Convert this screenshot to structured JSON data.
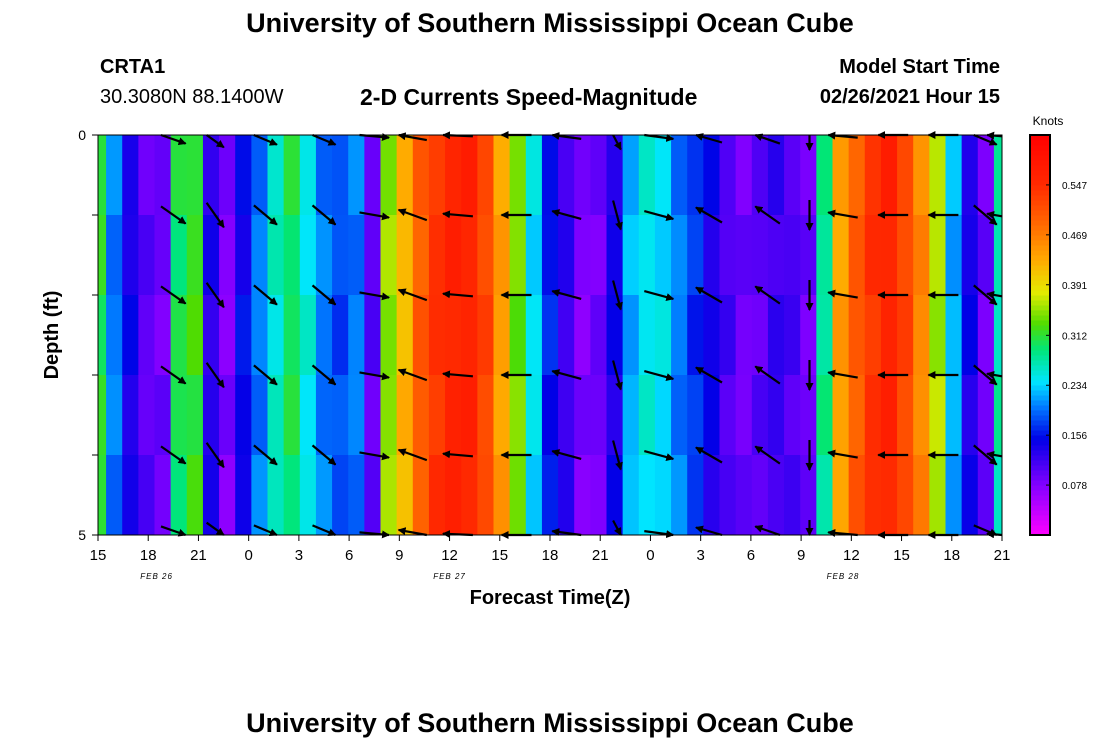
{
  "header": {
    "title": "University of Southern Mississippi Ocean Cube",
    "station_id": "CRTA1",
    "station_coords": "30.3080N 88.1400W",
    "plot_title": "2-D Currents Speed-Magnitude",
    "model_start_label": "Model Start Time",
    "model_start_value": "02/26/2021 Hour 15"
  },
  "footer": {
    "title": "University of Southern Mississippi Ocean Cube"
  },
  "chart_data": {
    "type": "heatmap",
    "title": "2-D Currents Speed-Magnitude",
    "xlabel": "Forecast Time(Z)",
    "ylabel": "Depth (ft)",
    "x_range_hours": [
      0,
      54
    ],
    "x_tick_labels": [
      "15",
      "18",
      "21",
      "0",
      "3",
      "6",
      "9",
      "12",
      "15",
      "18",
      "21",
      "0",
      "3",
      "6",
      "9",
      "12",
      "15",
      "18",
      "21"
    ],
    "x_date_labels": [
      {
        "label": "FEB 26",
        "hour": 3.5
      },
      {
        "label": "FEB 27",
        "hour": 21
      },
      {
        "label": "FEB 28",
        "hour": 44.5
      }
    ],
    "y_range_ft": [
      0,
      5
    ],
    "y_tick_labels": [
      {
        "value": 0,
        "label": "0"
      },
      {
        "value": 1,
        "label": ""
      },
      {
        "value": 2,
        "label": ""
      },
      {
        "value": 3,
        "label": ""
      },
      {
        "value": 4,
        "label": ""
      },
      {
        "value": 5,
        "label": "5"
      }
    ],
    "depth_rows_ft": [
      0,
      1,
      2,
      3,
      4,
      5
    ],
    "speed_by_hour": [
      0.31,
      0.2,
      0.14,
      0.1,
      0.09,
      0.3,
      0.32,
      0.13,
      0.08,
      0.15,
      0.2,
      0.26,
      0.3,
      0.25,
      0.2,
      0.18,
      0.2,
      0.1,
      0.35,
      0.42,
      0.5,
      0.54,
      0.56,
      0.56,
      0.52,
      0.44,
      0.34,
      0.24,
      0.16,
      0.12,
      0.08,
      0.09,
      0.14,
      0.22,
      0.25,
      0.24,
      0.2,
      0.17,
      0.14,
      0.11,
      0.09,
      0.1,
      0.12,
      0.11,
      0.09,
      0.28,
      0.44,
      0.5,
      0.54,
      0.56,
      0.52,
      0.46,
      0.36,
      0.22,
      0.14,
      0.09,
      0.27
    ],
    "colorbar": {
      "unit": "Knots",
      "range": [
        0,
        0.625
      ],
      "ticks": [
        "0.078",
        "0.156",
        "0.234",
        "0.312",
        "0.391",
        "0.469",
        "0.547"
      ],
      "tick_values": [
        0.078,
        0.156,
        0.234,
        0.312,
        0.391,
        0.469,
        0.547
      ]
    },
    "vectors": {
      "unit_note": "current direction arrows, angle in degrees (0 = east, counter-clockwise positive)",
      "columns": [
        {
          "hour": 4.5,
          "angle_deg": -35
        },
        {
          "hour": 7,
          "angle_deg": -55
        },
        {
          "hour": 10,
          "angle_deg": -40
        },
        {
          "hour": 13.5,
          "angle_deg": -40
        },
        {
          "hour": 16.5,
          "angle_deg": -10
        },
        {
          "hour": 18.8,
          "angle_deg": 160
        },
        {
          "hour": 21.5,
          "angle_deg": 175
        },
        {
          "hour": 25,
          "angle_deg": 180
        },
        {
          "hour": 28,
          "angle_deg": 165
        },
        {
          "hour": 31,
          "angle_deg": -75
        },
        {
          "hour": 33.5,
          "angle_deg": -15
        },
        {
          "hour": 36.5,
          "angle_deg": 150
        },
        {
          "hour": 40,
          "angle_deg": 145
        },
        {
          "hour": 42.5,
          "angle_deg": -90
        },
        {
          "hour": 44.5,
          "angle_deg": 170
        },
        {
          "hour": 47.5,
          "angle_deg": 180
        },
        {
          "hour": 50.5,
          "angle_deg": 180
        },
        {
          "hour": 53,
          "angle_deg": -40
        },
        {
          "hour": 54,
          "angle_deg": 175
        }
      ],
      "row_depths_ft": [
        0,
        1,
        2,
        3,
        4,
        5
      ]
    }
  }
}
